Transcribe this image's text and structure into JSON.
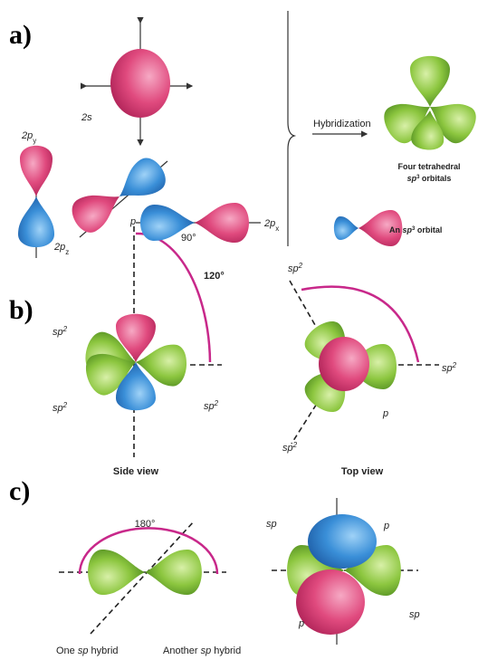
{
  "a": {
    "marker": "a)",
    "s2": "2s",
    "py": [
      "2p",
      "y"
    ],
    "pz": [
      "2p",
      "z"
    ],
    "px": [
      "2p",
      "x"
    ],
    "arrow": "Hybridization",
    "tetra": [
      "Four tetrahedral",
      "sp",
      "3",
      " orbitals"
    ],
    "single": [
      "An ",
      "sp",
      "3",
      " orbital"
    ]
  },
  "b": {
    "marker": "b)",
    "side": {
      "p": "p",
      "angle": "90°",
      "sp2": [
        [
          "sp",
          "2"
        ],
        [
          "sp",
          "2"
        ],
        [
          "sp",
          "2"
        ]
      ],
      "caption": "Side view"
    },
    "top": {
      "sp2": [
        [
          "sp",
          "2"
        ],
        [
          "sp",
          "2"
        ],
        [
          "sp",
          "2"
        ]
      ],
      "angle": "120°",
      "p": "p",
      "caption": "Top view"
    }
  },
  "c": {
    "marker": "c)",
    "angle": "180°",
    "one": [
      "One ",
      "sp",
      " hybrid"
    ],
    "another": [
      "Another ",
      "sp",
      " hybrid"
    ],
    "right": {
      "sp": [
        "sp",
        "sp"
      ],
      "p": [
        "p",
        "p"
      ]
    }
  }
}
